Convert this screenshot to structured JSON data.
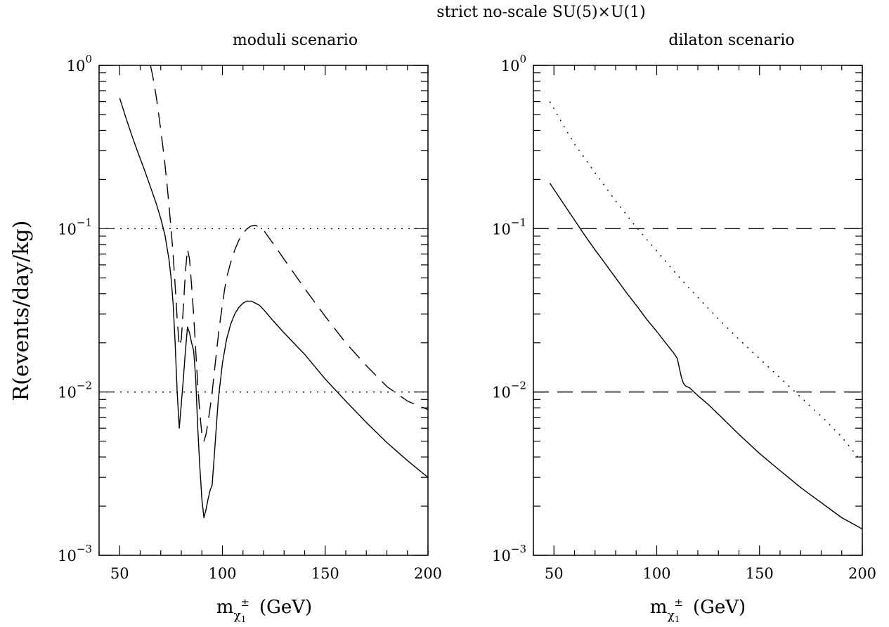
{
  "figure": {
    "title": "strict no-scale SU(5)×U(1)",
    "y_axis_label": "R(events/day/kg)",
    "y_tick_labels": [
      {
        "base": "10",
        "exp": "0",
        "value": 1
      },
      {
        "base": "10",
        "exp": "−1",
        "value": 0.1
      },
      {
        "base": "10",
        "exp": "−2",
        "value": 0.01
      },
      {
        "base": "10",
        "exp": "−3",
        "value": 0.001
      }
    ],
    "x_axis_label": {
      "main": "m",
      "sub": "χ",
      "sub_sub": "1",
      "sup": "±",
      "unit": "(GeV)"
    }
  },
  "chart_data": [
    {
      "type": "line",
      "panel_title": "moduli scenario",
      "xlim": [
        40,
        200
      ],
      "ylim": [
        0.001,
        1
      ],
      "y_scale": "log",
      "x_ticks": [
        50,
        100,
        150,
        200
      ],
      "x_tick_labels": [
        "50",
        "100",
        "150",
        "200"
      ],
      "grid": false,
      "series": [
        {
          "style": "solid",
          "color": "#000000",
          "x": [
            50,
            53,
            56,
            59,
            62,
            65,
            68,
            70,
            72,
            74,
            75,
            76,
            77,
            78,
            79,
            81,
            82,
            83,
            84,
            85,
            86,
            87,
            88,
            89,
            90,
            91,
            92,
            93,
            94,
            95,
            96,
            97,
            98,
            100,
            102,
            104,
            106,
            108,
            110,
            112,
            114,
            116,
            118,
            120,
            125,
            130,
            140,
            150,
            160,
            170,
            180,
            190,
            200
          ],
          "y": [
            0.63,
            0.48,
            0.37,
            0.29,
            0.23,
            0.18,
            0.14,
            0.115,
            0.092,
            0.065,
            0.05,
            0.035,
            0.02,
            0.01,
            0.006,
            0.012,
            0.018,
            0.025,
            0.023,
            0.02,
            0.018,
            0.012,
            0.006,
            0.0035,
            0.0022,
            0.0017,
            0.0019,
            0.0022,
            0.0025,
            0.0027,
            0.004,
            0.006,
            0.009,
            0.015,
            0.021,
            0.026,
            0.03,
            0.033,
            0.035,
            0.036,
            0.036,
            0.035,
            0.034,
            0.032,
            0.027,
            0.023,
            0.017,
            0.012,
            0.0088,
            0.0065,
            0.0049,
            0.0038,
            0.003
          ]
        },
        {
          "style": "dashed",
          "color": "#000000",
          "x": [
            65,
            66,
            67,
            68,
            69,
            70,
            71,
            72,
            73,
            74,
            75,
            76,
            77,
            78,
            79,
            80,
            81,
            82,
            83,
            84,
            85,
            86,
            87,
            88,
            89,
            90,
            91,
            92,
            93,
            94,
            95,
            96,
            97,
            98,
            99,
            100,
            101,
            102,
            104,
            106,
            108,
            110,
            112,
            114,
            116,
            118,
            120,
            125,
            130,
            140,
            150,
            160,
            170,
            180,
            190,
            200
          ],
          "y": [
            1.0,
            0.87,
            0.74,
            0.62,
            0.5,
            0.4,
            0.32,
            0.25,
            0.19,
            0.14,
            0.1,
            0.07,
            0.045,
            0.028,
            0.019,
            0.021,
            0.033,
            0.055,
            0.075,
            0.065,
            0.045,
            0.03,
            0.018,
            0.011,
            0.0075,
            0.0055,
            0.005,
            0.0055,
            0.0065,
            0.008,
            0.01,
            0.013,
            0.017,
            0.022,
            0.028,
            0.034,
            0.042,
            0.05,
            0.062,
            0.074,
            0.085,
            0.094,
            0.1,
            0.104,
            0.105,
            0.102,
            0.098,
            0.08,
            0.065,
            0.043,
            0.029,
            0.02,
            0.0145,
            0.0108,
            0.0088,
            0.0078
          ]
        },
        {
          "style": "dotted",
          "color": "#000000",
          "x": [
            40,
            200
          ],
          "y": [
            0.1,
            0.1
          ]
        },
        {
          "style": "dotted",
          "color": "#000000",
          "x": [
            40,
            200
          ],
          "y": [
            0.01,
            0.01
          ]
        }
      ]
    },
    {
      "type": "line",
      "panel_title": "dilaton scenario",
      "xlim": [
        40,
        200
      ],
      "ylim": [
        0.001,
        1
      ],
      "y_scale": "log",
      "x_ticks": [
        50,
        100,
        150,
        200
      ],
      "x_tick_labels": [
        "50",
        "100",
        "150",
        "200"
      ],
      "grid": false,
      "series": [
        {
          "style": "solid",
          "color": "#000000",
          "x": [
            48,
            55,
            60,
            65,
            70,
            75,
            80,
            85,
            90,
            95,
            100,
            105,
            108,
            110,
            111,
            112,
            113,
            114,
            116,
            120,
            125,
            130,
            140,
            150,
            160,
            170,
            180,
            190,
            200
          ],
          "y": [
            0.19,
            0.14,
            0.113,
            0.091,
            0.074,
            0.061,
            0.05,
            0.041,
            0.034,
            0.028,
            0.0235,
            0.0195,
            0.0175,
            0.016,
            0.014,
            0.0123,
            0.0113,
            0.0109,
            0.0106,
            0.0095,
            0.0084,
            0.0073,
            0.0055,
            0.0042,
            0.0033,
            0.0026,
            0.0021,
            0.0017,
            0.00145
          ]
        },
        {
          "style": "dotted",
          "color": "#000000",
          "x": [
            48,
            55,
            60,
            70,
            80,
            90,
            100,
            110,
            120,
            130,
            140,
            150,
            160,
            170,
            180,
            190,
            200
          ],
          "y": [
            0.6,
            0.42,
            0.33,
            0.22,
            0.148,
            0.102,
            0.073,
            0.052,
            0.038,
            0.028,
            0.021,
            0.016,
            0.0122,
            0.0093,
            0.0071,
            0.0053,
            0.0037
          ]
        },
        {
          "style": "dashed",
          "color": "#000000",
          "x": [
            40,
            200
          ],
          "y": [
            0.1,
            0.1
          ]
        },
        {
          "style": "dashed",
          "color": "#000000",
          "x": [
            40,
            200
          ],
          "y": [
            0.01,
            0.01
          ]
        }
      ]
    }
  ]
}
